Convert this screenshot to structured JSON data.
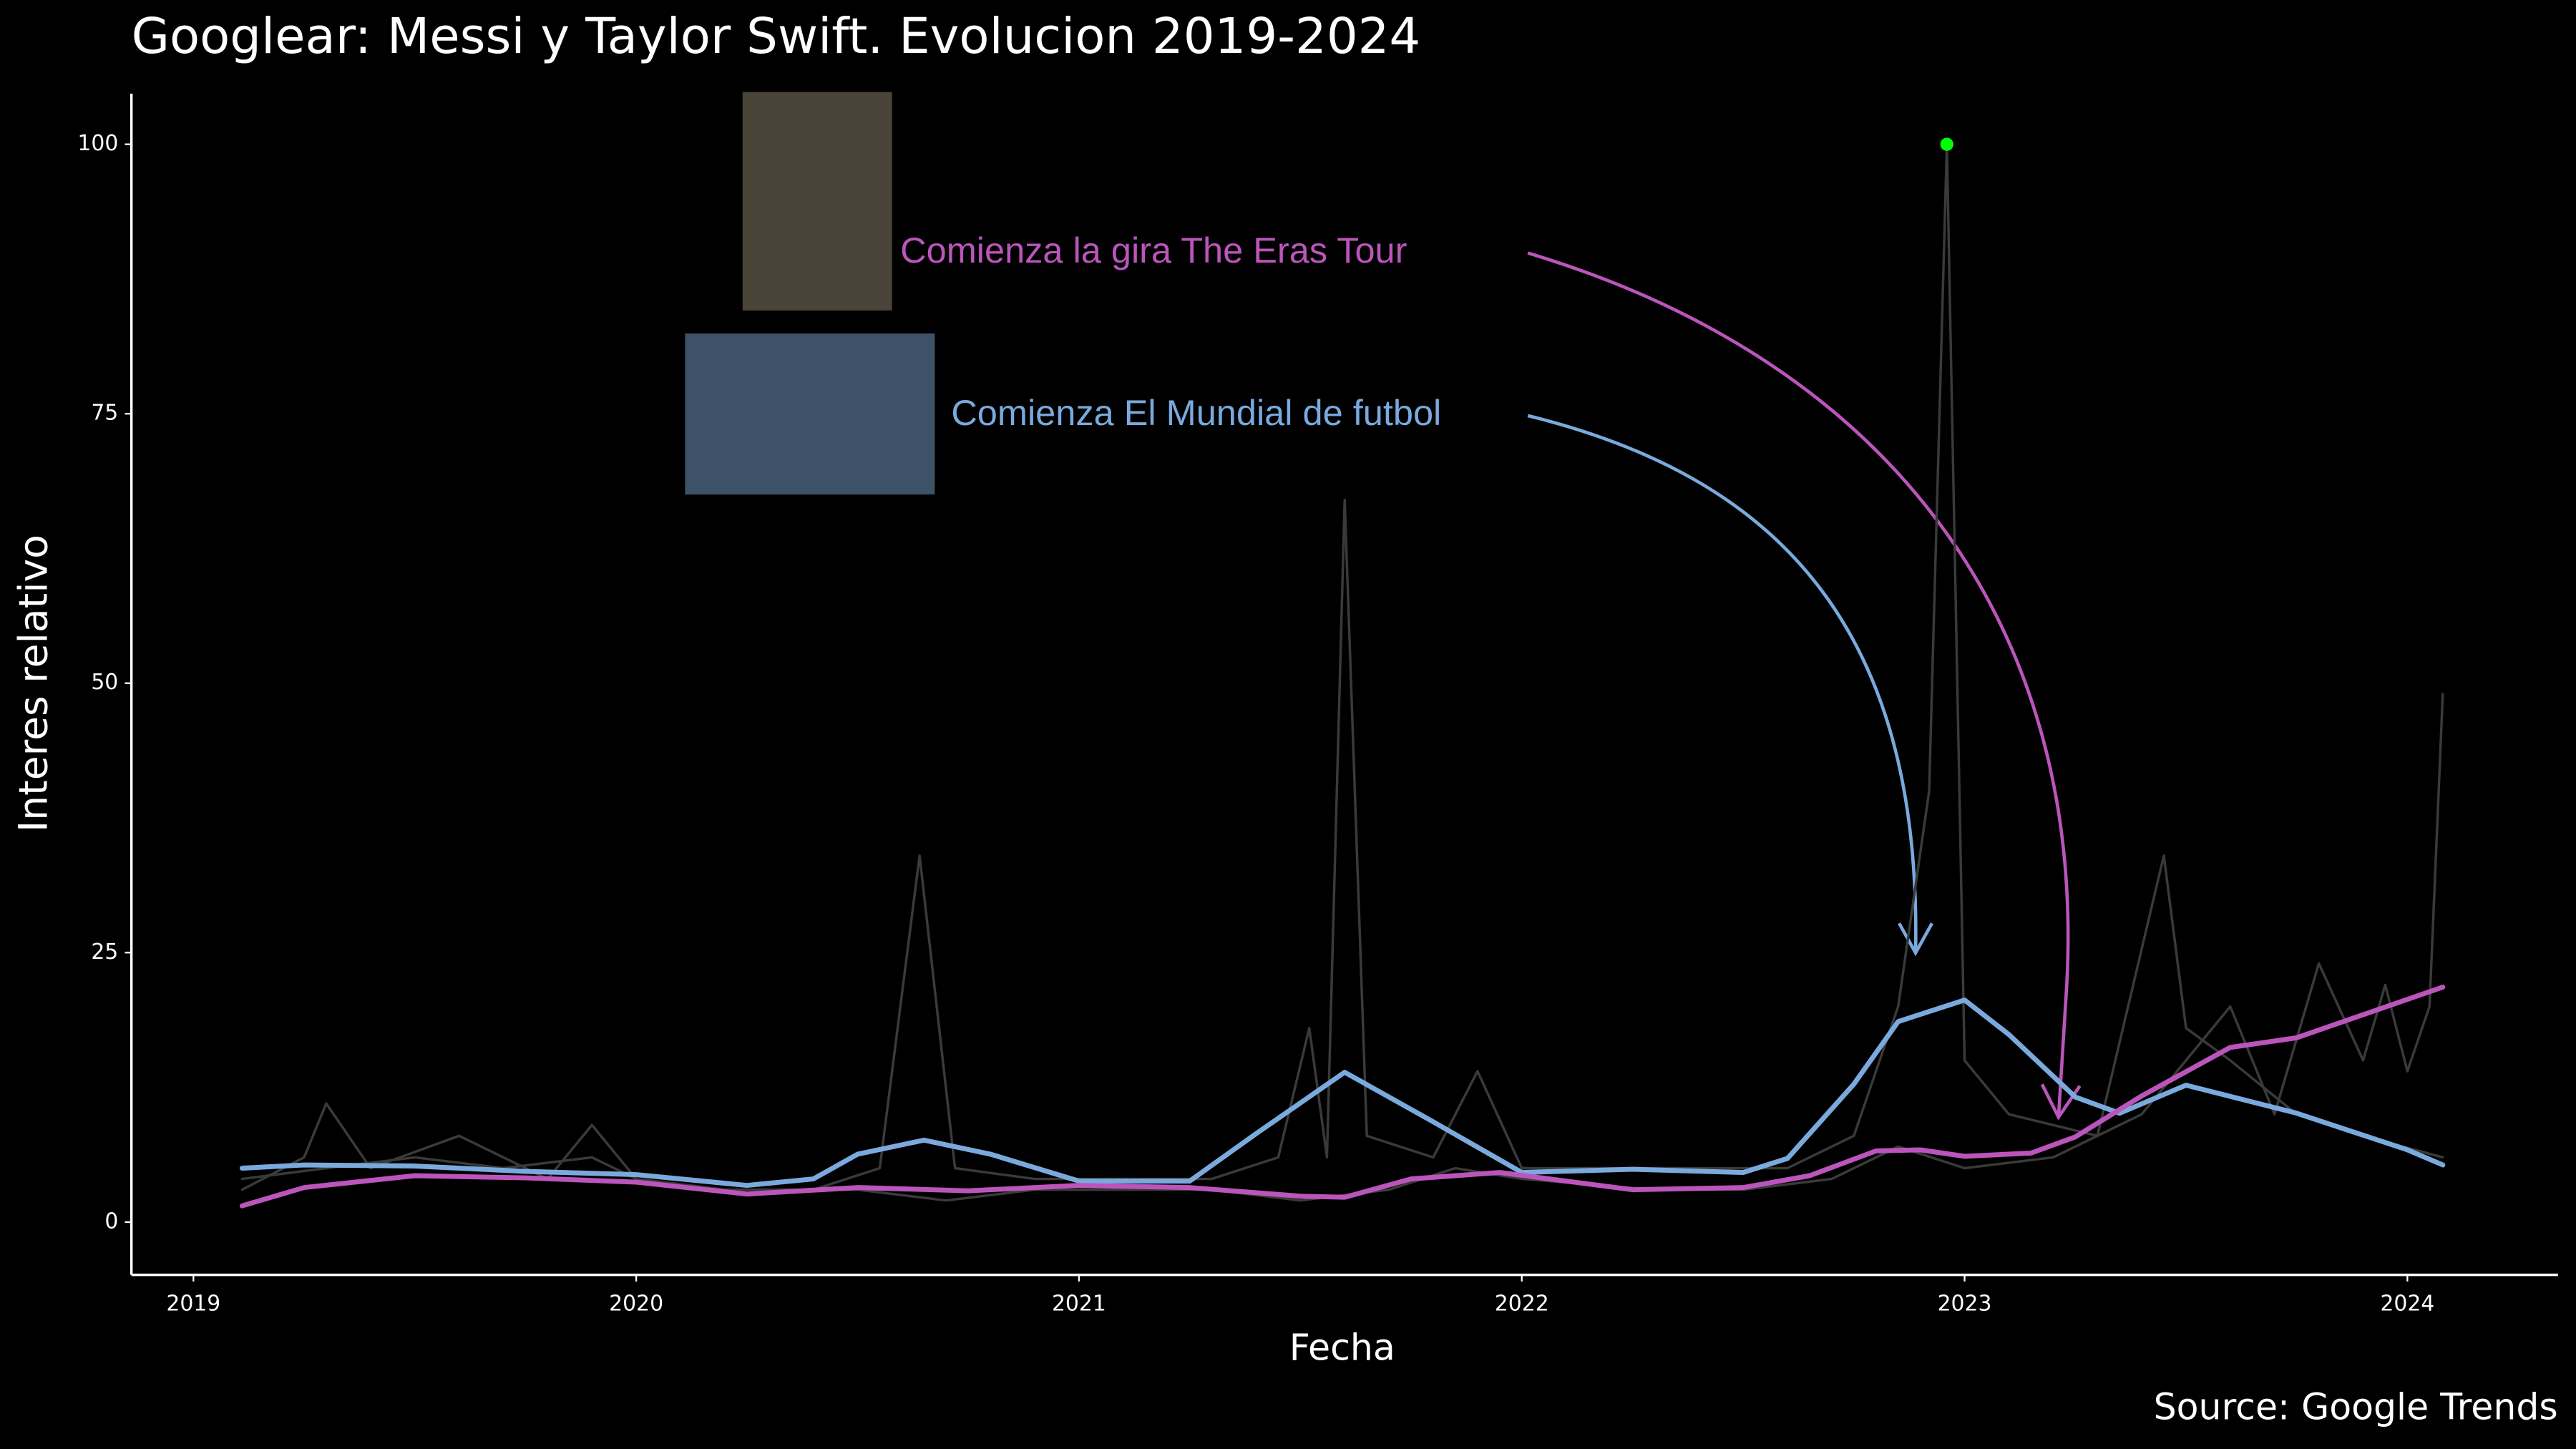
{
  "chart_data": {
    "type": "line",
    "title": "Googlear: Messi y Taylor Swift. Evolucion 2019-2024",
    "x_label": "Fecha",
    "y_label": "Interes relativo",
    "source": "Source: Google Trends",
    "xlim": [
      2018.86,
      2024.34
    ],
    "xticks": [
      2019,
      2020,
      2021,
      2022,
      2023,
      2024
    ],
    "ylim": [
      -4.9,
      104.7
    ],
    "yticks": [
      0,
      25,
      50,
      75,
      100
    ],
    "grid": false,
    "highlight_max_color": "#00ff00",
    "raw_series": [
      {
        "color": "#3a3a3a",
        "x": [
          2019.11,
          2019.3,
          2019.5,
          2019.7,
          2019.9,
          2020.0,
          2020.2,
          2020.4,
          2020.55,
          2020.64,
          2020.72,
          2020.9,
          2021.1,
          2021.3,
          2021.45,
          2021.52,
          2021.56,
          2021.6,
          2021.65,
          2021.8,
          2021.9,
          2022.0,
          2022.2,
          2022.4,
          2022.6,
          2022.75,
          2022.85,
          2022.92,
          2022.96,
          2023.0,
          2023.1,
          2023.3,
          2023.45,
          2023.5,
          2023.6,
          2023.75,
          2023.9,
          2024.08
        ],
        "values": [
          4,
          5,
          6,
          5,
          6,
          4,
          3,
          3,
          5,
          34,
          5,
          4,
          4,
          4,
          6,
          18,
          6,
          67,
          8,
          6,
          14,
          5,
          5,
          5,
          5,
          8,
          20,
          40,
          100,
          15,
          10,
          8,
          34,
          18,
          15,
          10,
          8,
          6
        ]
      },
      {
        "color": "#3a3a3a",
        "x": [
          2019.11,
          2019.25,
          2019.3,
          2019.4,
          2019.6,
          2019.8,
          2019.9,
          2020.0,
          2020.2,
          2020.5,
          2020.7,
          2020.9,
          2021.1,
          2021.3,
          2021.5,
          2021.7,
          2021.85,
          2022.0,
          2022.3,
          2022.5,
          2022.7,
          2022.85,
          2023.0,
          2023.2,
          2023.4,
          2023.6,
          2023.7,
          2023.8,
          2023.9,
          2023.95,
          2024.0,
          2024.05,
          2024.08
        ],
        "values": [
          3,
          6,
          11,
          5,
          8,
          4,
          9,
          4,
          3,
          3,
          2,
          3,
          3,
          3,
          2,
          3,
          5,
          4,
          3,
          3,
          4,
          7,
          5,
          6,
          10,
          20,
          10,
          24,
          15,
          22,
          14,
          20,
          49
        ]
      }
    ],
    "series": [
      {
        "color": "#7aaadd",
        "x": [
          2019.11,
          2019.25,
          2019.5,
          2019.75,
          2020.0,
          2020.25,
          2020.4,
          2020.5,
          2020.65,
          2020.8,
          2021.0,
          2021.25,
          2021.4,
          2021.6,
          2021.8,
          2022.0,
          2022.25,
          2022.5,
          2022.6,
          2022.75,
          2022.85,
          2023.0,
          2023.1,
          2023.25,
          2023.35,
          2023.5,
          2023.75,
          2024.0,
          2024.08
        ],
        "values": [
          5.0,
          5.3,
          5.2,
          4.7,
          4.4,
          3.4,
          4.0,
          6.3,
          7.6,
          6.3,
          3.8,
          3.8,
          8.2,
          13.9,
          9.3,
          4.6,
          4.9,
          4.6,
          5.9,
          12.8,
          18.6,
          20.6,
          17.4,
          11.6,
          10.1,
          12.7,
          10.1,
          6.7,
          5.3
        ]
      },
      {
        "color": "#bb55bb",
        "x": [
          2019.11,
          2019.25,
          2019.5,
          2019.75,
          2020.0,
          2020.25,
          2020.5,
          2020.75,
          2021.0,
          2021.25,
          2021.5,
          2021.6,
          2021.75,
          2021.95,
          2022.25,
          2022.5,
          2022.65,
          2022.8,
          2022.9,
          2023.0,
          2023.15,
          2023.25,
          2023.4,
          2023.6,
          2023.75,
          2024.08
        ],
        "values": [
          1.5,
          3.2,
          4.3,
          4.1,
          3.7,
          2.6,
          3.2,
          2.9,
          3.4,
          3.2,
          2.4,
          2.3,
          4.0,
          4.6,
          3.0,
          3.2,
          4.3,
          6.6,
          6.7,
          6.1,
          6.4,
          7.9,
          11.7,
          16.2,
          17.1,
          21.8
        ]
      }
    ],
    "annotations": [
      {
        "text": "Comienza la gira The Eras Tour",
        "color": "#bb55bb"
      },
      {
        "text": "Comienza El Mundial de futbol",
        "color": "#7aaadd"
      }
    ]
  }
}
